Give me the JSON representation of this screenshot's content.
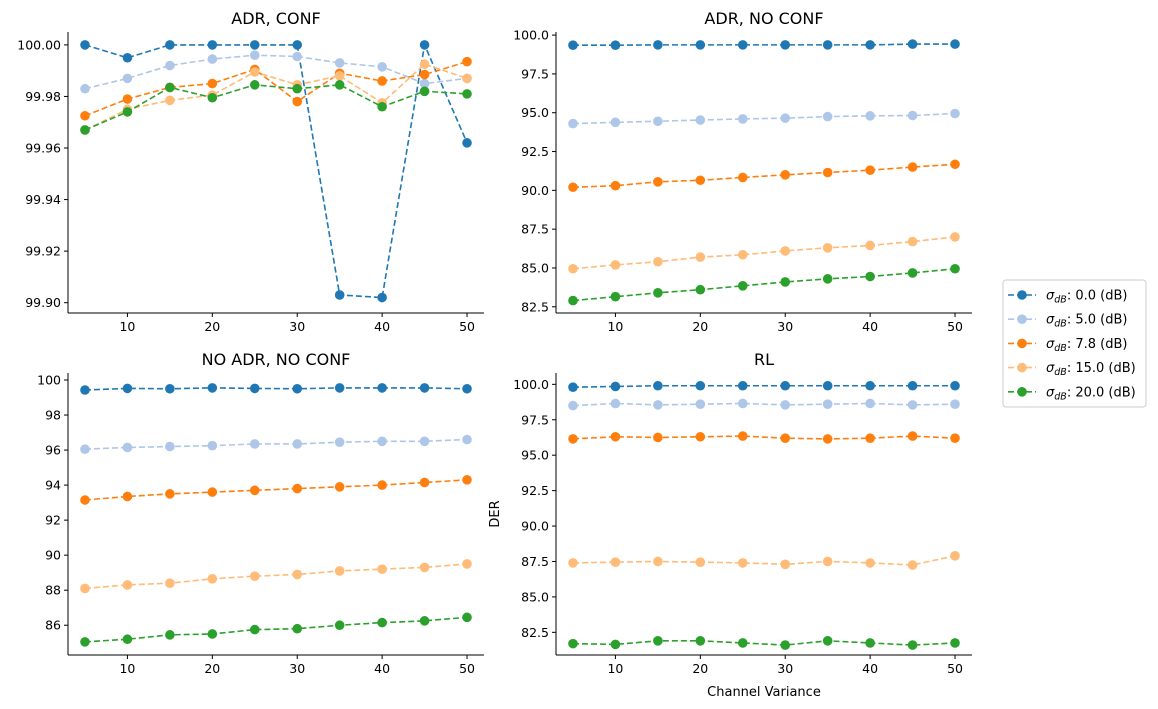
{
  "legend": {
    "placement": "right",
    "entries": [
      {
        "prefix": "σ",
        "sub": "dB",
        "suffix": ": 0.0 (dB)"
      },
      {
        "prefix": "σ",
        "sub": "dB",
        "suffix": ": 5.0 (dB)"
      },
      {
        "prefix": "σ",
        "sub": "dB",
        "suffix": ": 7.8 (dB)"
      },
      {
        "prefix": "σ",
        "sub": "dB",
        "suffix": ": 15.0 (dB)"
      },
      {
        "prefix": "σ",
        "sub": "dB",
        "suffix": ": 20.0 (dB)"
      }
    ]
  },
  "colors": [
    "#1f77b4",
    "#aec7e8",
    "#ff7f0e",
    "#ffbb78",
    "#2ca02c"
  ],
  "chart_data": [
    {
      "type": "line",
      "title": "ADR, CONF",
      "xlabel": "",
      "ylabel": "",
      "x": [
        5,
        10,
        15,
        20,
        25,
        30,
        35,
        40,
        45,
        50
      ],
      "xticks": [
        10,
        20,
        30,
        40,
        50
      ],
      "xlim": [
        3,
        52
      ],
      "ylim": [
        99.896,
        100.005
      ],
      "yticks": [
        99.9,
        99.92,
        99.94,
        99.96,
        99.98,
        100.0
      ],
      "ytick_decimals": 2,
      "grid": false,
      "series": [
        {
          "name": "σdB: 0.0 (dB)",
          "values": [
            100.0,
            99.995,
            100.0,
            100.0,
            100.0,
            100.0,
            99.903,
            99.902,
            100.0,
            99.962
          ]
        },
        {
          "name": "σdB: 5.0 (dB)",
          "values": [
            99.983,
            99.987,
            99.992,
            99.9945,
            99.996,
            99.9955,
            99.993,
            99.9915,
            99.985,
            99.987
          ]
        },
        {
          "name": "σdB: 7.8 (dB)",
          "values": [
            99.9725,
            99.979,
            99.9835,
            99.985,
            99.9905,
            99.978,
            99.989,
            99.986,
            99.9885,
            99.9935
          ]
        },
        {
          "name": "σdB: 15.0 (dB)",
          "values": [
            99.967,
            99.975,
            99.9785,
            99.9805,
            99.9895,
            99.9845,
            99.988,
            99.9775,
            99.9925,
            99.987
          ]
        },
        {
          "name": "σdB: 20.0 (dB)",
          "values": [
            99.967,
            99.974,
            99.9835,
            99.9795,
            99.9845,
            99.983,
            99.9845,
            99.976,
            99.982,
            99.981
          ]
        }
      ]
    },
    {
      "type": "line",
      "title": "ADR, NO CONF",
      "xlabel": "",
      "ylabel": "",
      "x": [
        5,
        10,
        15,
        20,
        25,
        30,
        35,
        40,
        45,
        50
      ],
      "xticks": [
        10,
        20,
        30,
        40,
        50
      ],
      "xlim": [
        3,
        52
      ],
      "ylim": [
        82.1,
        100.2
      ],
      "yticks": [
        82.5,
        85.0,
        87.5,
        90.0,
        92.5,
        95.0,
        97.5,
        100.0
      ],
      "ytick_decimals": 1,
      "grid": false,
      "series": [
        {
          "name": "σdB: 0.0 (dB)",
          "values": [
            99.35,
            99.35,
            99.37,
            99.37,
            99.37,
            99.37,
            99.37,
            99.37,
            99.42,
            99.42
          ]
        },
        {
          "name": "σdB: 5.0 (dB)",
          "values": [
            94.3,
            94.38,
            94.45,
            94.53,
            94.6,
            94.65,
            94.75,
            94.8,
            94.82,
            94.95
          ]
        },
        {
          "name": "σdB: 7.8 (dB)",
          "values": [
            90.2,
            90.3,
            90.55,
            90.65,
            90.83,
            91.0,
            91.15,
            91.3,
            91.5,
            91.68
          ]
        },
        {
          "name": "σdB: 15.0 (dB)",
          "values": [
            84.95,
            85.2,
            85.4,
            85.7,
            85.85,
            86.1,
            86.3,
            86.45,
            86.7,
            87.0
          ]
        },
        {
          "name": "σdB: 20.0 (dB)",
          "values": [
            82.9,
            83.15,
            83.4,
            83.6,
            83.85,
            84.1,
            84.3,
            84.45,
            84.68,
            84.95
          ]
        }
      ]
    },
    {
      "type": "line",
      "title": "NO ADR, NO CONF",
      "xlabel": "",
      "ylabel": "",
      "x": [
        5,
        10,
        15,
        20,
        25,
        30,
        35,
        40,
        45,
        50
      ],
      "xticks": [
        10,
        20,
        30,
        40,
        50
      ],
      "xlim": [
        3,
        52
      ],
      "ylim": [
        84.3,
        100.4
      ],
      "yticks": [
        86,
        88,
        90,
        92,
        94,
        96,
        98,
        100
      ],
      "ytick_decimals": 0,
      "grid": false,
      "series": [
        {
          "name": "σdB: 0.0 (dB)",
          "values": [
            99.43,
            99.52,
            99.5,
            99.55,
            99.52,
            99.5,
            99.55,
            99.55,
            99.55,
            99.5
          ]
        },
        {
          "name": "σdB: 5.0 (dB)",
          "values": [
            96.05,
            96.15,
            96.2,
            96.25,
            96.35,
            96.35,
            96.45,
            96.5,
            96.5,
            96.6
          ]
        },
        {
          "name": "σdB: 7.8 (dB)",
          "values": [
            93.15,
            93.35,
            93.5,
            93.6,
            93.7,
            93.8,
            93.9,
            94.0,
            94.15,
            94.3
          ]
        },
        {
          "name": "σdB: 15.0 (dB)",
          "values": [
            88.1,
            88.3,
            88.4,
            88.65,
            88.8,
            88.9,
            89.1,
            89.2,
            89.3,
            89.5
          ]
        },
        {
          "name": "σdB: 20.0 (dB)",
          "values": [
            85.05,
            85.2,
            85.45,
            85.5,
            85.75,
            85.8,
            86.0,
            86.15,
            86.25,
            86.45
          ]
        }
      ]
    },
    {
      "type": "line",
      "title": "RL",
      "xlabel": "Channel Variance",
      "ylabel": "DER",
      "x": [
        5,
        10,
        15,
        20,
        25,
        30,
        35,
        40,
        45,
        50
      ],
      "xticks": [
        10,
        20,
        30,
        40,
        50
      ],
      "xlim": [
        3,
        52
      ],
      "ylim": [
        80.9,
        100.8
      ],
      "yticks": [
        82.5,
        85.0,
        87.5,
        90.0,
        92.5,
        95.0,
        97.5,
        100.0
      ],
      "ytick_decimals": 1,
      "grid": false,
      "series": [
        {
          "name": "σdB: 0.0 (dB)",
          "values": [
            99.8,
            99.85,
            99.9,
            99.9,
            99.9,
            99.9,
            99.9,
            99.9,
            99.9,
            99.9
          ]
        },
        {
          "name": "σdB: 5.0 (dB)",
          "values": [
            98.5,
            98.65,
            98.55,
            98.6,
            98.65,
            98.55,
            98.6,
            98.65,
            98.55,
            98.6
          ]
        },
        {
          "name": "σdB: 7.8 (dB)",
          "values": [
            96.15,
            96.3,
            96.25,
            96.3,
            96.35,
            96.2,
            96.15,
            96.2,
            96.35,
            96.2
          ]
        },
        {
          "name": "σdB: 15.0 (dB)",
          "values": [
            87.4,
            87.45,
            87.5,
            87.45,
            87.4,
            87.3,
            87.5,
            87.4,
            87.25,
            87.9
          ]
        },
        {
          "name": "σdB: 20.0 (dB)",
          "values": [
            81.7,
            81.65,
            81.9,
            81.9,
            81.75,
            81.6,
            81.9,
            81.75,
            81.6,
            81.75
          ]
        }
      ]
    }
  ]
}
